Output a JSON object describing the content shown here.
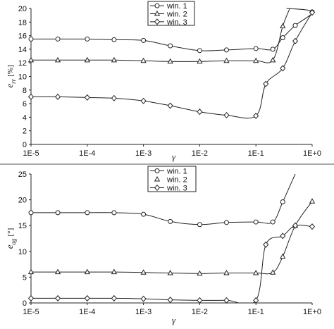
{
  "chart_data": [
    {
      "type": "line",
      "xscale": "log",
      "x_tick_labels": [
        "1E-5",
        "1E-4",
        "1E-3",
        "1E-2",
        "1E-1",
        "1E+0"
      ],
      "xlabel": "γ",
      "ylabel_main": "e",
      "ylabel_sub": "rr",
      "ylabel_unit": "[%]",
      "ylim": [
        0,
        20
      ],
      "y_ticks": [
        0,
        2,
        4,
        6,
        8,
        10,
        12,
        14,
        16,
        18,
        20
      ],
      "legend": "top-center, boxed",
      "series": [
        {
          "name": "win. 1",
          "marker": "circle",
          "x": [
            1e-05,
            3e-05,
            0.0001,
            0.0003,
            0.001,
            0.003,
            0.01,
            0.03,
            0.1,
            0.2,
            0.3,
            0.5,
            1.0
          ],
          "y": [
            15.5,
            15.5,
            15.5,
            15.4,
            15.3,
            14.5,
            13.8,
            13.9,
            14.1,
            14.0,
            15.7,
            17.5,
            19.5
          ],
          "curve_extra": [
            [
              0.35,
              20.0
            ]
          ]
        },
        {
          "name": "win. 2",
          "marker": "triangle",
          "x": [
            1e-05,
            3e-05,
            0.0001,
            0.0003,
            0.001,
            0.003,
            0.01,
            0.03,
            0.1,
            0.2,
            0.3
          ],
          "y": [
            12.4,
            12.4,
            12.4,
            12.4,
            12.3,
            12.2,
            12.2,
            12.3,
            12.3,
            12.4,
            17.4
          ],
          "curve_extra": [
            [
              0.4,
              20.0
            ]
          ]
        },
        {
          "name": "win. 3",
          "marker": "diamond",
          "x": [
            1e-05,
            3e-05,
            0.0001,
            0.0003,
            0.001,
            0.003,
            0.01,
            0.03,
            0.1,
            0.15,
            0.3,
            0.5,
            1.0
          ],
          "y": [
            7.0,
            7.0,
            6.9,
            6.8,
            6.4,
            5.7,
            4.8,
            4.3,
            4.2,
            8.9,
            11.2,
            15.2,
            19.4
          ],
          "curve_extra": []
        }
      ]
    },
    {
      "type": "line",
      "xscale": "log",
      "x_tick_labels": [
        "1E-5",
        "1E-4",
        "1E-3",
        "1E-2",
        "1E-1",
        "1E+0"
      ],
      "xlabel": "γ",
      "ylabel_main": "e",
      "ylabel_sub": "ag",
      "ylabel_unit": "[°]",
      "ylim": [
        0,
        25
      ],
      "y_ticks": [
        0,
        5,
        10,
        15,
        20,
        25
      ],
      "legend": "top-center, boxed",
      "series": [
        {
          "name": "win. 1",
          "marker": "circle",
          "x": [
            1e-05,
            3e-05,
            0.0001,
            0.0003,
            0.001,
            0.003,
            0.01,
            0.03,
            0.1,
            0.2,
            0.3
          ],
          "y": [
            17.5,
            17.5,
            17.5,
            17.5,
            17.2,
            15.8,
            15.2,
            15.6,
            15.7,
            15.7,
            19.6
          ],
          "curve_extra": [
            [
              0.5,
              25.0
            ]
          ]
        },
        {
          "name": "win. 2",
          "marker": "triangle",
          "x": [
            1e-05,
            3e-05,
            0.0001,
            0.0003,
            0.001,
            0.003,
            0.01,
            0.03,
            0.1,
            0.2,
            0.3,
            0.5,
            1.0
          ],
          "y": [
            6.0,
            6.0,
            6.0,
            6.0,
            5.9,
            5.8,
            5.7,
            5.8,
            5.8,
            5.9,
            9.0,
            15.0,
            19.7
          ],
          "curve_extra": []
        },
        {
          "name": "win. 3",
          "marker": "diamond",
          "x": [
            1e-05,
            3e-05,
            0.0001,
            0.0003,
            0.001,
            0.003,
            0.01,
            0.03,
            0.1,
            0.15,
            0.3,
            0.5,
            1.0
          ],
          "y": [
            0.9,
            0.9,
            0.9,
            0.9,
            0.8,
            0.6,
            0.5,
            0.5,
            0.5,
            11.3,
            13.0,
            15.0,
            14.8
          ],
          "curve_extra": []
        }
      ]
    }
  ]
}
